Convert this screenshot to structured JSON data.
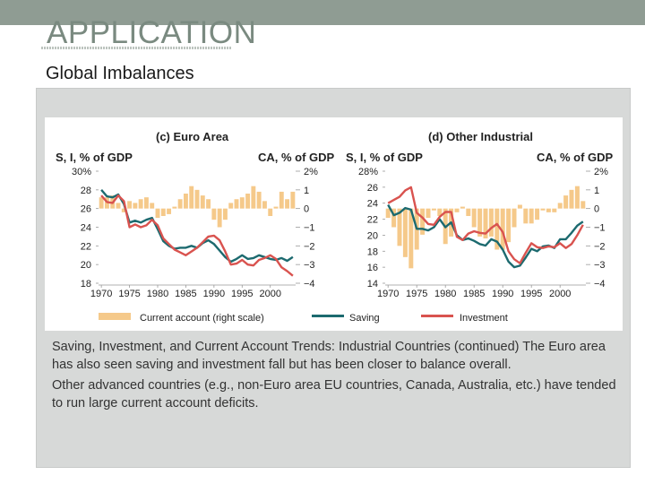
{
  "slide": {
    "title": "APPLICATION",
    "subtitle": "Global Imbalances",
    "caption_1": "Saving, Investment, and Current Account Trends: Industrial Countries (continued) The Euro area has also seen saving and investment fall but has been closer to balance overall.",
    "caption_2": "Other advanced countries (e.g., non-Euro area EU countries, Canada, Australia, etc.) have tended to run large current account deficits."
  },
  "colors": {
    "current_account": "#f5c98a",
    "saving": "#1c6a6f",
    "investment": "#d9534f",
    "topbar": "#8f9c93"
  },
  "legend": {
    "current_account": "Current account (right scale)",
    "saving": "Saving",
    "investment": "Investment"
  },
  "chart_data": [
    {
      "type": "bar+line",
      "title": "(c) Euro Area",
      "ylabel_left": "S, I, % of GDP",
      "ylabel_right": "CA, % of GDP",
      "left_ticks": [
        "18",
        "20",
        "22",
        "24",
        "26",
        "28",
        "30%"
      ],
      "right_ticks": [
        "−4",
        "−3",
        "−2",
        "−1",
        "0",
        "1",
        "2%"
      ],
      "x_ticks": [
        "1970",
        "1975",
        "1980",
        "1985",
        "1990",
        "1995",
        "2000"
      ],
      "ylim_left": [
        18,
        30
      ],
      "ylim_right": [
        -4,
        2
      ],
      "x": [
        1970,
        1971,
        1972,
        1973,
        1974,
        1975,
        1976,
        1977,
        1978,
        1979,
        1980,
        1981,
        1982,
        1983,
        1984,
        1985,
        1986,
        1987,
        1988,
        1989,
        1990,
        1991,
        1992,
        1993,
        1994,
        1995,
        1996,
        1997,
        1998,
        1999,
        2000,
        2001,
        2002,
        2003,
        2004
      ],
      "series": [
        {
          "name": "Saving",
          "values": [
            28.0,
            27.3,
            27.2,
            27.5,
            26.5,
            24.5,
            24.7,
            24.5,
            24.8,
            25.0,
            23.8,
            22.5,
            22.0,
            21.7,
            21.8,
            21.8,
            22.0,
            21.8,
            22.3,
            22.6,
            22.2,
            21.5,
            20.8,
            20.3,
            20.6,
            21.0,
            20.6,
            20.7,
            21.0,
            20.8,
            20.6,
            20.5,
            20.7,
            20.4,
            20.8
          ]
        },
        {
          "name": "Investment",
          "values": [
            27.4,
            26.7,
            26.6,
            27.4,
            26.8,
            24.0,
            24.3,
            24.0,
            24.2,
            24.8,
            24.2,
            22.8,
            22.2,
            21.6,
            21.3,
            21.0,
            21.4,
            21.8,
            22.4,
            23.0,
            23.1,
            22.6,
            21.4,
            20.0,
            20.1,
            20.5,
            20.0,
            19.9,
            20.5,
            20.7,
            21.0,
            20.6,
            19.7,
            19.3,
            18.8
          ]
        },
        {
          "name": "Current account",
          "values": [
            0.6,
            0.6,
            0.7,
            0.3,
            -0.2,
            0.4,
            0.3,
            0.5,
            0.6,
            0.3,
            -0.5,
            -0.4,
            -0.3,
            0.1,
            0.5,
            0.8,
            1.2,
            1.0,
            0.7,
            0.5,
            -0.6,
            -1.0,
            -0.6,
            0.3,
            0.5,
            0.6,
            0.8,
            1.2,
            0.9,
            0.4,
            -0.4,
            0.1,
            0.9,
            0.5,
            0.9
          ]
        }
      ]
    },
    {
      "type": "bar+line",
      "title": "(d) Other Industrial",
      "ylabel_left": "S, I, % of GDP",
      "ylabel_right": "CA, % of GDP",
      "left_ticks": [
        "14",
        "16",
        "18",
        "20",
        "22",
        "24",
        "26",
        "28%"
      ],
      "right_ticks": [
        "−4",
        "−3",
        "−2",
        "−1",
        "0",
        "1",
        "2%"
      ],
      "x_ticks": [
        "1970",
        "1975",
        "1980",
        "1985",
        "1990",
        "1995",
        "2000"
      ],
      "ylim_left": [
        14,
        28
      ],
      "ylim_right": [
        -4,
        2
      ],
      "x": [
        1970,
        1971,
        1972,
        1973,
        1974,
        1975,
        1976,
        1977,
        1978,
        1979,
        1980,
        1981,
        1982,
        1983,
        1984,
        1985,
        1986,
        1987,
        1988,
        1989,
        1990,
        1991,
        1992,
        1993,
        1994,
        1995,
        1996,
        1997,
        1998,
        1999,
        2000,
        2001,
        2002,
        2003,
        2004
      ],
      "series": [
        {
          "name": "Saving",
          "values": [
            23.8,
            22.5,
            22.8,
            23.4,
            23.2,
            20.8,
            20.8,
            20.6,
            21.0,
            22.0,
            21.0,
            21.6,
            20.0,
            19.4,
            19.6,
            19.3,
            18.9,
            18.7,
            19.5,
            19.2,
            18.2,
            16.7,
            16.0,
            16.2,
            17.2,
            18.3,
            18.0,
            18.6,
            18.7,
            18.4,
            19.5,
            19.5,
            20.3,
            21.2,
            21.7
          ]
        },
        {
          "name": "Investment",
          "values": [
            24.0,
            24.4,
            24.8,
            25.6,
            26.0,
            22.8,
            22.2,
            21.4,
            21.3,
            22.3,
            22.9,
            22.9,
            19.8,
            19.4,
            20.2,
            20.5,
            20.3,
            20.2,
            20.9,
            21.4,
            20.4,
            18.0,
            17.0,
            16.5,
            17.8,
            19.0,
            18.5,
            18.4,
            18.6,
            18.5,
            19.0,
            18.4,
            18.9,
            20.0,
            21.3
          ]
        },
        {
          "name": "Current account",
          "values": [
            -0.5,
            -1.0,
            -2.0,
            -2.6,
            -3.2,
            -2.2,
            -1.4,
            -0.5,
            -0.1,
            -0.4,
            -1.9,
            -1.5,
            -0.2,
            0.1,
            -0.4,
            -1.0,
            -1.5,
            -1.6,
            -1.5,
            -2.2,
            -2.2,
            -1.8,
            -1.0,
            0.2,
            -0.8,
            -0.8,
            -0.6,
            -0.1,
            -0.2,
            -0.2,
            0.3,
            0.7,
            1.0,
            1.2,
            0.4
          ]
        }
      ]
    }
  ]
}
